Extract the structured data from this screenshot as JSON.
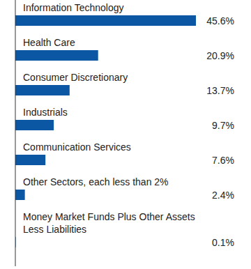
{
  "chart_data": {
    "type": "bar",
    "orientation": "horizontal",
    "categories": [
      "Information Technology",
      "Health Care",
      "Consumer Discretionary",
      "Industrials",
      "Communication Services",
      "Other Sectors, each less than 2%",
      "Money Market Funds Plus Other Assets Less Liabilities"
    ],
    "values": [
      45.6,
      20.9,
      13.7,
      9.7,
      7.6,
      2.4,
      0.1
    ],
    "value_labels": [
      "45.6%",
      "20.9%",
      "13.7%",
      "9.7%",
      "7.6%",
      "2.4%",
      "0.1%"
    ],
    "color": "#0b57a4",
    "xlim": [
      0,
      50
    ],
    "data_labels": true,
    "tick_labels": false,
    "grid": false
  }
}
